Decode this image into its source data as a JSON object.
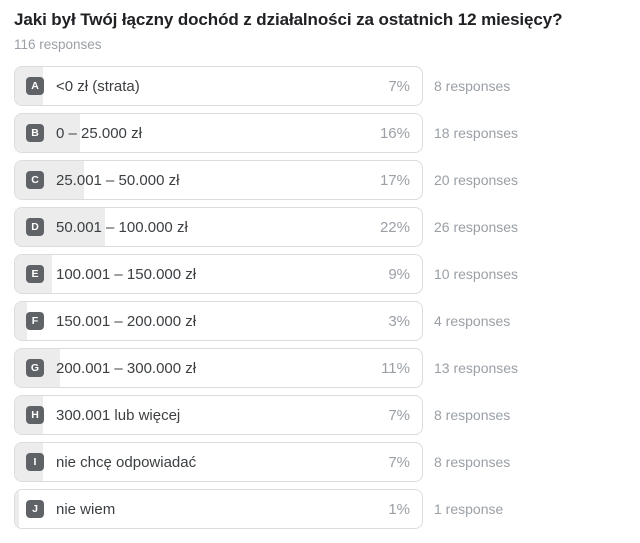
{
  "header": {
    "title": "Jaki był Twój łączny dochód z działalności za ostatnich 12 miesięcy?",
    "responses_summary": "116 responses"
  },
  "options": [
    {
      "letter": "A",
      "label": "<0 zł (strata)",
      "percent": "7%",
      "percent_value": 7,
      "responses_label": "8 responses"
    },
    {
      "letter": "B",
      "label": "0 – 25.000 zł",
      "percent": "16%",
      "percent_value": 16,
      "responses_label": "18 responses"
    },
    {
      "letter": "C",
      "label": "25.001 – 50.000 zł",
      "percent": "17%",
      "percent_value": 17,
      "responses_label": "20 responses"
    },
    {
      "letter": "D",
      "label": "50.001 – 100.000 zł",
      "percent": "22%",
      "percent_value": 22,
      "responses_label": "26 responses"
    },
    {
      "letter": "E",
      "label": "100.001 – 150.000 zł",
      "percent": "9%",
      "percent_value": 9,
      "responses_label": "10 responses"
    },
    {
      "letter": "F",
      "label": "150.001 – 200.000 zł",
      "percent": "3%",
      "percent_value": 3,
      "responses_label": "4 responses"
    },
    {
      "letter": "G",
      "label": "200.001 – 300.000 zł",
      "percent": "11%",
      "percent_value": 11,
      "responses_label": "13 responses"
    },
    {
      "letter": "H",
      "label": "300.001 lub więcej",
      "percent": "7%",
      "percent_value": 7,
      "responses_label": "8 responses"
    },
    {
      "letter": "I",
      "label": "nie chcę odpowiadać",
      "percent": "7%",
      "percent_value": 7,
      "responses_label": "8 responses"
    },
    {
      "letter": "J",
      "label": "nie wiem",
      "percent": "1%",
      "percent_value": 1,
      "responses_label": "1 response"
    }
  ],
  "colors": {
    "page_bg": "#ffffff",
    "title_color": "#202124",
    "muted_color": "#9aa0a6",
    "label_color": "#3c4043",
    "box_border": "#dadce0",
    "bar_fill": "#ececec",
    "badge_bg": "#5f6368",
    "badge_text": "#ffffff"
  },
  "chart_data": {
    "type": "bar",
    "orientation": "horizontal",
    "title": "Jaki był Twój łączny dochód z działalności za ostatnich 12 miesięcy?",
    "subtitle": "116 responses",
    "total_responses": 116,
    "categories": [
      "<0 zł (strata)",
      "0 – 25.000 zł",
      "25.001 – 50.000 zł",
      "50.001 – 100.000 zł",
      "100.001 – 150.000 zł",
      "150.001 – 200.000 zł",
      "200.001 – 300.000 zł",
      "300.001 lub więcej",
      "nie chcę odpowiadać",
      "nie wiem"
    ],
    "series": [
      {
        "name": "percent",
        "values": [
          7,
          16,
          17,
          22,
          9,
          3,
          11,
          7,
          7,
          1
        ]
      },
      {
        "name": "responses",
        "values": [
          8,
          18,
          20,
          26,
          10,
          4,
          13,
          8,
          8,
          1
        ]
      }
    ],
    "xlim": [
      0,
      100
    ],
    "grid": false,
    "legend": "none"
  }
}
